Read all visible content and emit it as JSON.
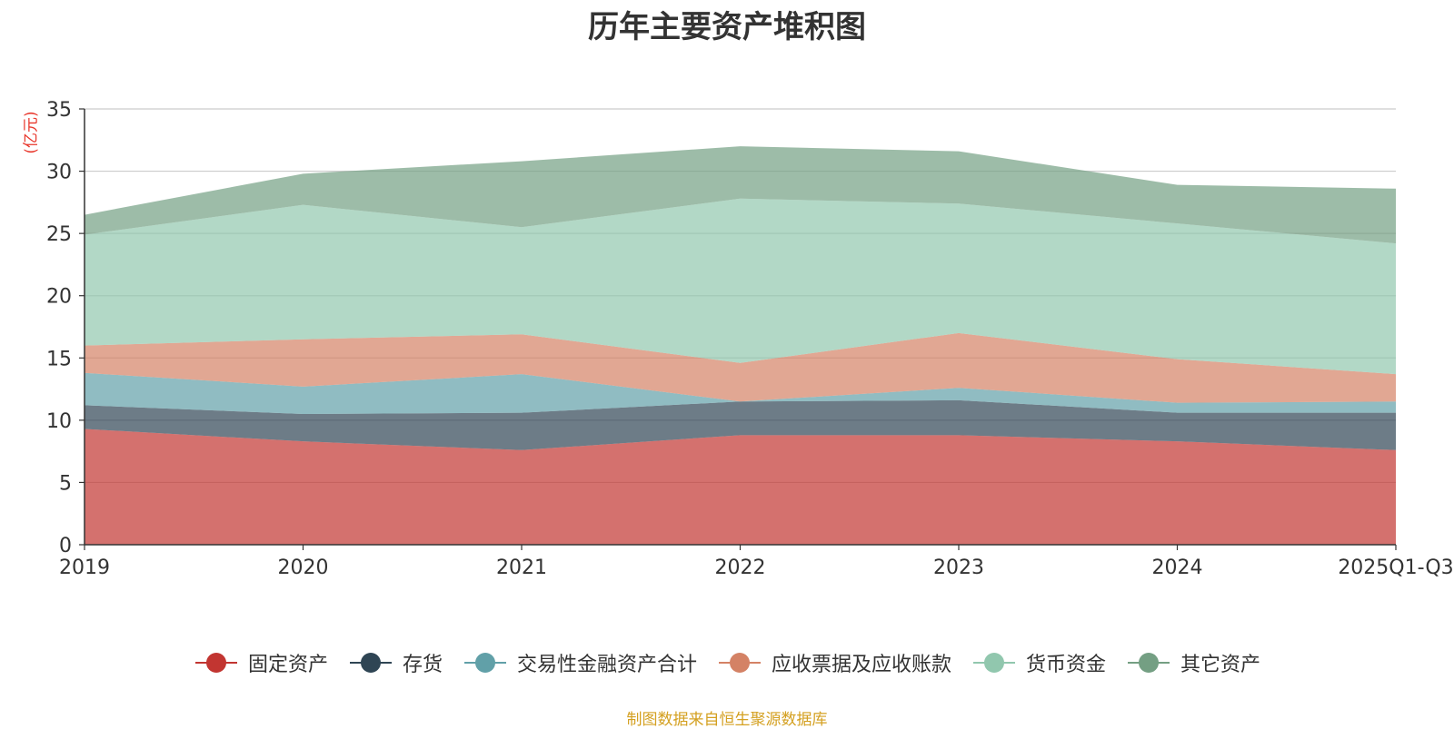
{
  "chart_data": {
    "type": "area",
    "stacked": true,
    "title": "历年主要资产堆积图",
    "ylabel": "(亿元)",
    "xlabel": "",
    "ylim": [
      0,
      35
    ],
    "yticks": [
      0,
      5,
      10,
      15,
      20,
      25,
      30,
      35
    ],
    "categories": [
      "2019",
      "2020",
      "2021",
      "2022",
      "2023",
      "2024",
      "2025Q1-Q3"
    ],
    "legend_position": "bottom-center",
    "grid": true,
    "series": [
      {
        "name": "固定资产",
        "color": "#c23531",
        "values": [
          9.3,
          8.3,
          7.6,
          8.8,
          8.8,
          8.3,
          7.6
        ]
      },
      {
        "name": "存货",
        "color": "#2f4554",
        "values": [
          1.9,
          2.2,
          3.0,
          2.7,
          2.8,
          2.3,
          3.0
        ]
      },
      {
        "name": "交易性金融资产合计",
        "color": "#61a0a8",
        "values": [
          2.6,
          2.2,
          3.1,
          0.0,
          1.0,
          0.8,
          0.9
        ]
      },
      {
        "name": "应收票据及应收账款",
        "color": "#d48265",
        "values": [
          2.2,
          3.8,
          3.2,
          3.1,
          4.4,
          3.5,
          2.2
        ]
      },
      {
        "name": "货币资金",
        "color": "#91c7ae",
        "values": [
          8.9,
          10.8,
          8.6,
          13.2,
          10.4,
          10.9,
          10.5
        ]
      },
      {
        "name": "其它资产",
        "color": "#749f83",
        "values": [
          1.6,
          2.5,
          5.3,
          4.2,
          4.2,
          3.1,
          4.4
        ]
      }
    ]
  },
  "footer": {
    "source_text": "制图数据来自恒生聚源数据库",
    "source_color": "#d4a020"
  }
}
